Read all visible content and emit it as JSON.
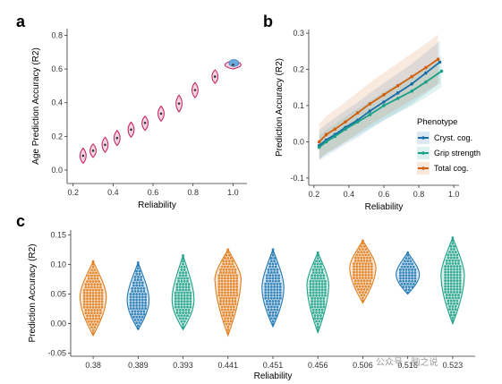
{
  "watermark": "公众号 · 脑之说",
  "colors": {
    "blue": "#1f77b4",
    "teal": "#1fa187",
    "orange": "#e07b1a",
    "pink": "#c2185b",
    "violin_pink": "#f3d3df",
    "violin_blue": "#6aa9d9",
    "cyst": "#1a6ea8",
    "grip": "#16a085",
    "total": "#d35f0c"
  },
  "chart_data": [
    {
      "panel": "a",
      "type": "violin",
      "xlabel": "Reliability",
      "ylabel": "Age Prediction Accuracy (R2)",
      "xlim": [
        0.17,
        1.07
      ],
      "ylim": [
        -0.08,
        0.84
      ],
      "xticks": [
        0.2,
        0.4,
        0.6,
        0.8,
        1.0
      ],
      "xtick_labels": [
        "0.2",
        "0.4",
        "0.6",
        "0.8",
        "1.0"
      ],
      "yticks": [
        0.0,
        0.2,
        0.4,
        0.6,
        0.8
      ],
      "ytick_labels": [
        "0.0",
        "0.2",
        "0.4",
        "0.6",
        "0.8"
      ],
      "groups": [
        {
          "x": 0.25,
          "mean": 0.085,
          "low": 0.04,
          "high": 0.13
        },
        {
          "x": 0.3,
          "mean": 0.115,
          "low": 0.075,
          "high": 0.155
        },
        {
          "x": 0.36,
          "mean": 0.15,
          "low": 0.105,
          "high": 0.195
        },
        {
          "x": 0.42,
          "mean": 0.19,
          "low": 0.145,
          "high": 0.235
        },
        {
          "x": 0.49,
          "mean": 0.24,
          "low": 0.195,
          "high": 0.285
        },
        {
          "x": 0.56,
          "mean": 0.28,
          "low": 0.235,
          "high": 0.32
        },
        {
          "x": 0.64,
          "mean": 0.335,
          "low": 0.29,
          "high": 0.38
        },
        {
          "x": 0.73,
          "mean": 0.395,
          "low": 0.345,
          "high": 0.445
        },
        {
          "x": 0.81,
          "mean": 0.475,
          "low": 0.43,
          "high": 0.52
        },
        {
          "x": 0.91,
          "mean": 0.555,
          "low": 0.515,
          "high": 0.595
        },
        {
          "x": 1.0,
          "mean": 0.625,
          "low": 0.6,
          "high": 0.65
        }
      ]
    },
    {
      "panel": "b",
      "type": "line",
      "xlabel": "Reliability",
      "ylabel": "Prediction Accuracy (R2)",
      "xlim": [
        0.17,
        1.03
      ],
      "ylim": [
        -0.12,
        0.31
      ],
      "xticks": [
        0.2,
        0.4,
        0.6,
        0.8,
        1.0
      ],
      "xtick_labels": [
        "0.2",
        "0.4",
        "0.6",
        "0.8",
        "1.0"
      ],
      "yticks": [
        -0.1,
        0.0,
        0.1,
        0.2,
        0.3
      ],
      "ytick_labels": [
        "-0.1",
        "0.0",
        "0.1",
        "0.2",
        "0.3"
      ],
      "legend": {
        "title": "Phenotype",
        "position": "right"
      },
      "series": [
        {
          "name": "Cryst. cog.",
          "x": [
            0.23,
            0.27,
            0.32,
            0.38,
            0.45,
            0.52,
            0.6,
            0.68,
            0.76,
            0.84,
            0.92
          ],
          "y": [
            -0.01,
            0.005,
            0.02,
            0.04,
            0.06,
            0.085,
            0.11,
            0.135,
            0.16,
            0.19,
            0.22
          ],
          "band": 0.06
        },
        {
          "name": "Grip strength",
          "x": [
            0.23,
            0.27,
            0.32,
            0.38,
            0.45,
            0.52,
            0.6,
            0.68,
            0.76,
            0.84,
            0.93
          ],
          "y": [
            -0.015,
            0.0,
            0.015,
            0.035,
            0.055,
            0.075,
            0.1,
            0.12,
            0.14,
            0.165,
            0.195
          ],
          "band": 0.045
        },
        {
          "name": "Total cog.",
          "x": [
            0.23,
            0.27,
            0.32,
            0.38,
            0.45,
            0.52,
            0.6,
            0.68,
            0.76,
            0.84,
            0.91
          ],
          "y": [
            0.0,
            0.02,
            0.035,
            0.055,
            0.08,
            0.105,
            0.13,
            0.155,
            0.18,
            0.205,
            0.228
          ],
          "band": 0.07
        }
      ]
    },
    {
      "panel": "c",
      "type": "violin",
      "xlabel": "Reliability",
      "ylabel": "Prediction Accuracy (R2)",
      "ylim": [
        -0.055,
        0.158
      ],
      "yticks": [
        -0.05,
        0.0,
        0.05,
        0.1,
        0.15
      ],
      "ytick_labels": [
        "-0.05",
        "0.00",
        "0.05",
        "0.10",
        "0.15"
      ],
      "categories": [
        "0.38",
        "0.389",
        "0.393",
        "0.441",
        "0.451",
        "0.456",
        "0.506",
        "0.516",
        "0.523"
      ],
      "groups": [
        {
          "label": "0.38",
          "color": "orange",
          "min": -0.02,
          "max": 0.105,
          "mode": 0.04,
          "width": 0.9
        },
        {
          "label": "0.389",
          "color": "blue",
          "min": -0.01,
          "max": 0.103,
          "mode": 0.035,
          "width": 0.75
        },
        {
          "label": "0.393",
          "color": "teal",
          "min": -0.01,
          "max": 0.115,
          "mode": 0.035,
          "width": 0.75
        },
        {
          "label": "0.441",
          "color": "orange",
          "min": -0.02,
          "max": 0.125,
          "mode": 0.07,
          "width": 0.9
        },
        {
          "label": "0.451",
          "color": "blue",
          "min": -0.005,
          "max": 0.125,
          "mode": 0.055,
          "width": 0.75
        },
        {
          "label": "0.456",
          "color": "teal",
          "min": -0.015,
          "max": 0.12,
          "mode": 0.06,
          "width": 0.75
        },
        {
          "label": "0.506",
          "color": "orange",
          "min": 0.035,
          "max": 0.14,
          "mode": 0.09,
          "width": 0.9
        },
        {
          "label": "0.516",
          "color": "blue",
          "min": 0.05,
          "max": 0.12,
          "mode": 0.08,
          "width": 0.8
        },
        {
          "label": "0.523",
          "color": "teal",
          "min": 0.0,
          "max": 0.145,
          "mode": 0.075,
          "width": 0.8
        }
      ]
    }
  ],
  "panels": {
    "a": {
      "letter": "a"
    },
    "b": {
      "letter": "b"
    },
    "c": {
      "letter": "c"
    }
  }
}
